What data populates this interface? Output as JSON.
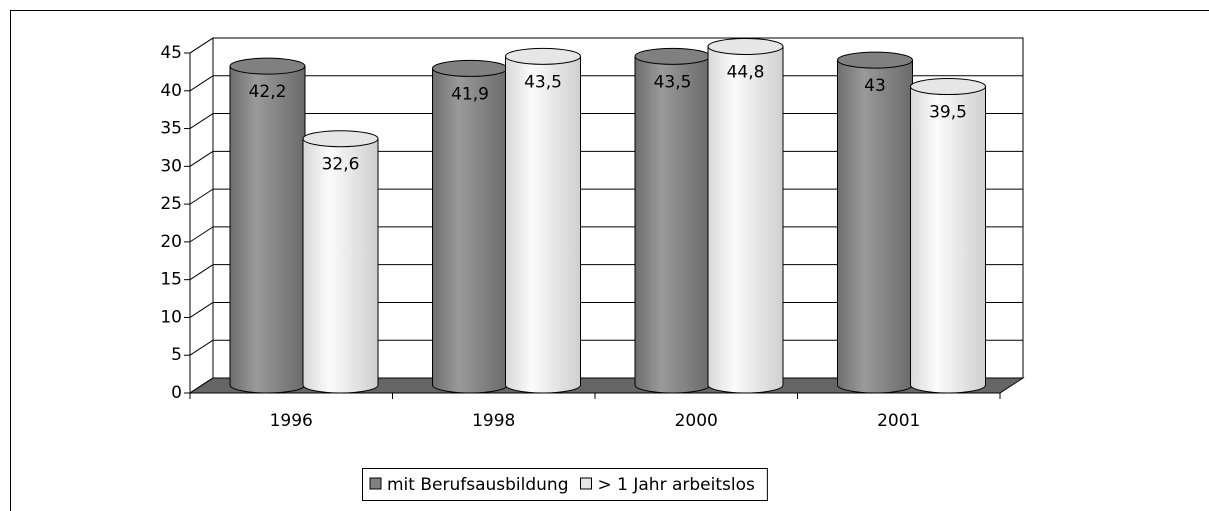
{
  "chart_data": {
    "type": "bar",
    "categories": [
      "1996",
      "1998",
      "2000",
      "2001"
    ],
    "series": [
      {
        "name": "mit Berufsausbildung",
        "color": "#808080",
        "values": [
          42.2,
          41.9,
          43.5,
          43
        ],
        "value_labels": [
          "42,2",
          "41,9",
          "43,5",
          "43"
        ]
      },
      {
        "name": "> 1 Jahr arbeitslos",
        "color": "#e6e6e6",
        "values": [
          32.6,
          43.5,
          44.8,
          39.5
        ],
        "value_labels": [
          "32,6",
          "43,5",
          "44,8",
          "39,5"
        ]
      }
    ],
    "ylim": [
      0,
      45
    ],
    "yticks": [
      0,
      5,
      10,
      15,
      20,
      25,
      30,
      35,
      40,
      45
    ],
    "grid": true,
    "legend": "bottom"
  }
}
